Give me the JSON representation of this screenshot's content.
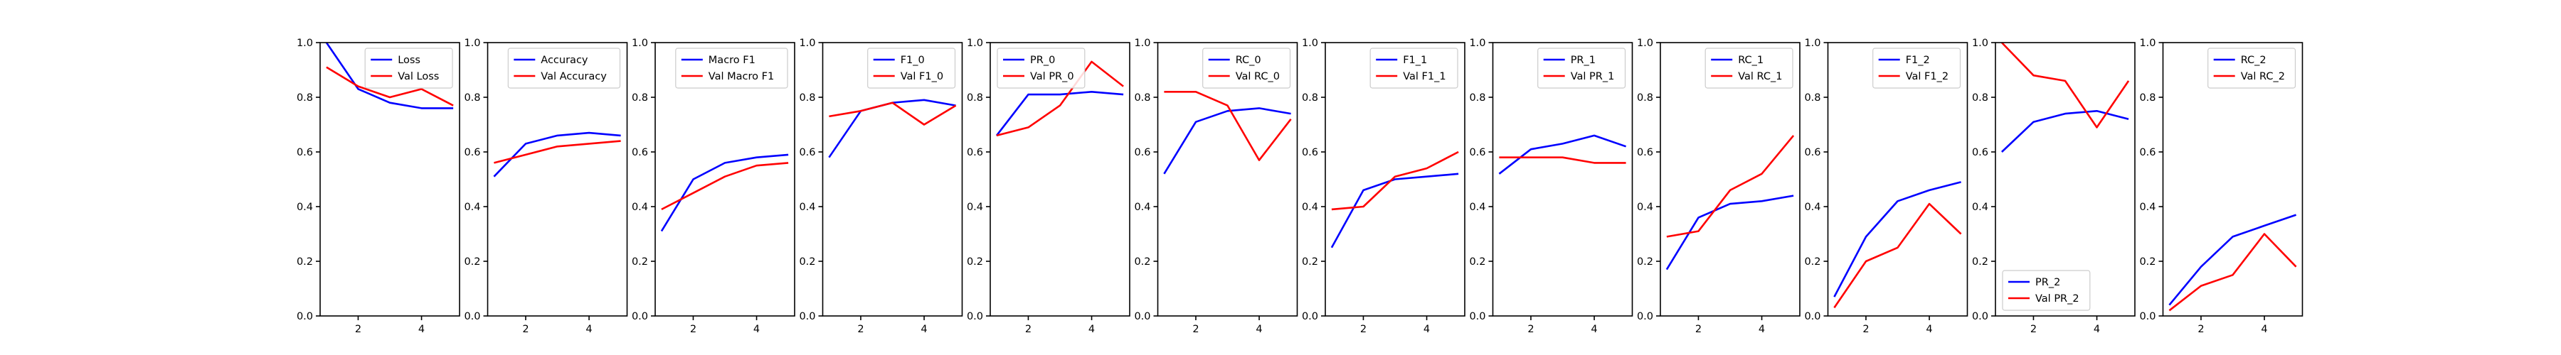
{
  "colors": {
    "train": "#0000ff",
    "val": "#ff0000"
  },
  "chart_data": [
    {
      "type": "line",
      "x": [
        1,
        2,
        3,
        4,
        5
      ],
      "ylim": [
        0,
        1
      ],
      "xticks": [
        2,
        4
      ],
      "yticks": [
        0.0,
        0.2,
        0.4,
        0.6,
        0.8,
        1.0
      ],
      "legend_position": "upper-right",
      "series": [
        {
          "name": "Loss",
          "color": "blue",
          "values": [
            1.0,
            0.83,
            0.78,
            0.76,
            0.76
          ]
        },
        {
          "name": "Val Loss",
          "color": "red",
          "values": [
            0.91,
            0.84,
            0.8,
            0.83,
            0.77
          ]
        }
      ]
    },
    {
      "type": "line",
      "x": [
        1,
        2,
        3,
        4,
        5
      ],
      "ylim": [
        0,
        1
      ],
      "xticks": [
        2,
        4
      ],
      "yticks": [
        0.0,
        0.2,
        0.4,
        0.6,
        0.8,
        1.0
      ],
      "legend_position": "upper-right",
      "series": [
        {
          "name": "Accuracy",
          "color": "blue",
          "values": [
            0.51,
            0.63,
            0.66,
            0.67,
            0.66
          ]
        },
        {
          "name": "Val Accuracy",
          "color": "red",
          "values": [
            0.56,
            0.59,
            0.62,
            0.63,
            0.64
          ]
        }
      ]
    },
    {
      "type": "line",
      "x": [
        1,
        2,
        3,
        4,
        5
      ],
      "ylim": [
        0,
        1
      ],
      "xticks": [
        2,
        4
      ],
      "yticks": [
        0.0,
        0.2,
        0.4,
        0.6,
        0.8,
        1.0
      ],
      "legend_position": "upper-right",
      "series": [
        {
          "name": "Macro F1",
          "color": "blue",
          "values": [
            0.31,
            0.5,
            0.56,
            0.58,
            0.59
          ]
        },
        {
          "name": "Val Macro F1",
          "color": "red",
          "values": [
            0.39,
            0.45,
            0.51,
            0.55,
            0.56
          ]
        }
      ]
    },
    {
      "type": "line",
      "x": [
        1,
        2,
        3,
        4,
        5
      ],
      "ylim": [
        0,
        1
      ],
      "xticks": [
        2,
        4
      ],
      "yticks": [
        0.0,
        0.2,
        0.4,
        0.6,
        0.8,
        1.0
      ],
      "legend_position": "upper-right",
      "series": [
        {
          "name": "F1_0",
          "color": "blue",
          "values": [
            0.58,
            0.75,
            0.78,
            0.79,
            0.77
          ]
        },
        {
          "name": "Val F1_0",
          "color": "red",
          "values": [
            0.73,
            0.75,
            0.78,
            0.7,
            0.77
          ]
        }
      ]
    },
    {
      "type": "line",
      "x": [
        1,
        2,
        3,
        4,
        5
      ],
      "ylim": [
        0,
        1
      ],
      "xticks": [
        2,
        4
      ],
      "yticks": [
        0.0,
        0.2,
        0.4,
        0.6,
        0.8,
        1.0
      ],
      "legend_position": "upper-left",
      "series": [
        {
          "name": "PR_0",
          "color": "blue",
          "values": [
            0.66,
            0.81,
            0.81,
            0.82,
            0.81
          ]
        },
        {
          "name": "Val PR_0",
          "color": "red",
          "values": [
            0.66,
            0.69,
            0.77,
            0.93,
            0.84
          ]
        }
      ]
    },
    {
      "type": "line",
      "x": [
        1,
        2,
        3,
        4,
        5
      ],
      "ylim": [
        0,
        1
      ],
      "xticks": [
        2,
        4
      ],
      "yticks": [
        0.0,
        0.2,
        0.4,
        0.6,
        0.8,
        1.0
      ],
      "legend_position": "upper-right",
      "series": [
        {
          "name": "RC_0",
          "color": "blue",
          "values": [
            0.52,
            0.71,
            0.75,
            0.76,
            0.74
          ]
        },
        {
          "name": "Val RC_0",
          "color": "red",
          "values": [
            0.82,
            0.82,
            0.77,
            0.57,
            0.72
          ]
        }
      ]
    },
    {
      "type": "line",
      "x": [
        1,
        2,
        3,
        4,
        5
      ],
      "ylim": [
        0,
        1
      ],
      "xticks": [
        2,
        4
      ],
      "yticks": [
        0.0,
        0.2,
        0.4,
        0.6,
        0.8,
        1.0
      ],
      "legend_position": "upper-right",
      "series": [
        {
          "name": "F1_1",
          "color": "blue",
          "values": [
            0.25,
            0.46,
            0.5,
            0.51,
            0.52
          ]
        },
        {
          "name": "Val F1_1",
          "color": "red",
          "values": [
            0.39,
            0.4,
            0.51,
            0.54,
            0.6
          ]
        }
      ]
    },
    {
      "type": "line",
      "x": [
        1,
        2,
        3,
        4,
        5
      ],
      "ylim": [
        0,
        1
      ],
      "xticks": [
        2,
        4
      ],
      "yticks": [
        0.0,
        0.2,
        0.4,
        0.6,
        0.8,
        1.0
      ],
      "legend_position": "upper-right",
      "series": [
        {
          "name": "PR_1",
          "color": "blue",
          "values": [
            0.52,
            0.61,
            0.63,
            0.66,
            0.62
          ]
        },
        {
          "name": "Val PR_1",
          "color": "red",
          "values": [
            0.58,
            0.58,
            0.58,
            0.56,
            0.56
          ]
        }
      ]
    },
    {
      "type": "line",
      "x": [
        1,
        2,
        3,
        4,
        5
      ],
      "ylim": [
        0,
        1
      ],
      "xticks": [
        2,
        4
      ],
      "yticks": [
        0.0,
        0.2,
        0.4,
        0.6,
        0.8,
        1.0
      ],
      "legend_position": "upper-right",
      "series": [
        {
          "name": "RC_1",
          "color": "blue",
          "values": [
            0.17,
            0.36,
            0.41,
            0.42,
            0.44
          ]
        },
        {
          "name": "Val RC_1",
          "color": "red",
          "values": [
            0.29,
            0.31,
            0.46,
            0.52,
            0.66
          ]
        }
      ]
    },
    {
      "type": "line",
      "x": [
        1,
        2,
        3,
        4,
        5
      ],
      "ylim": [
        0,
        1
      ],
      "xticks": [
        2,
        4
      ],
      "yticks": [
        0.0,
        0.2,
        0.4,
        0.6,
        0.8,
        1.0
      ],
      "legend_position": "upper-right",
      "series": [
        {
          "name": "F1_2",
          "color": "blue",
          "values": [
            0.07,
            0.29,
            0.42,
            0.46,
            0.49
          ]
        },
        {
          "name": "Val F1_2",
          "color": "red",
          "values": [
            0.03,
            0.2,
            0.25,
            0.41,
            0.3
          ]
        }
      ]
    },
    {
      "type": "line",
      "x": [
        1,
        2,
        3,
        4,
        5
      ],
      "ylim": [
        0,
        1
      ],
      "xticks": [
        2,
        4
      ],
      "yticks": [
        0.0,
        0.2,
        0.4,
        0.6,
        0.8,
        1.0
      ],
      "legend_position": "lower-left",
      "series": [
        {
          "name": "PR_2",
          "color": "blue",
          "values": [
            0.6,
            0.71,
            0.74,
            0.75,
            0.72
          ]
        },
        {
          "name": "Val PR_2",
          "color": "red",
          "values": [
            1.0,
            0.88,
            0.86,
            0.69,
            0.86
          ]
        }
      ]
    },
    {
      "type": "line",
      "x": [
        1,
        2,
        3,
        4,
        5
      ],
      "ylim": [
        0,
        1
      ],
      "xticks": [
        2,
        4
      ],
      "yticks": [
        0.0,
        0.2,
        0.4,
        0.6,
        0.8,
        1.0
      ],
      "legend_position": "upper-right",
      "series": [
        {
          "name": "RC_2",
          "color": "blue",
          "values": [
            0.04,
            0.18,
            0.29,
            0.33,
            0.37
          ]
        },
        {
          "name": "Val RC_2",
          "color": "red",
          "values": [
            0.02,
            0.11,
            0.15,
            0.3,
            0.18
          ]
        }
      ]
    }
  ]
}
